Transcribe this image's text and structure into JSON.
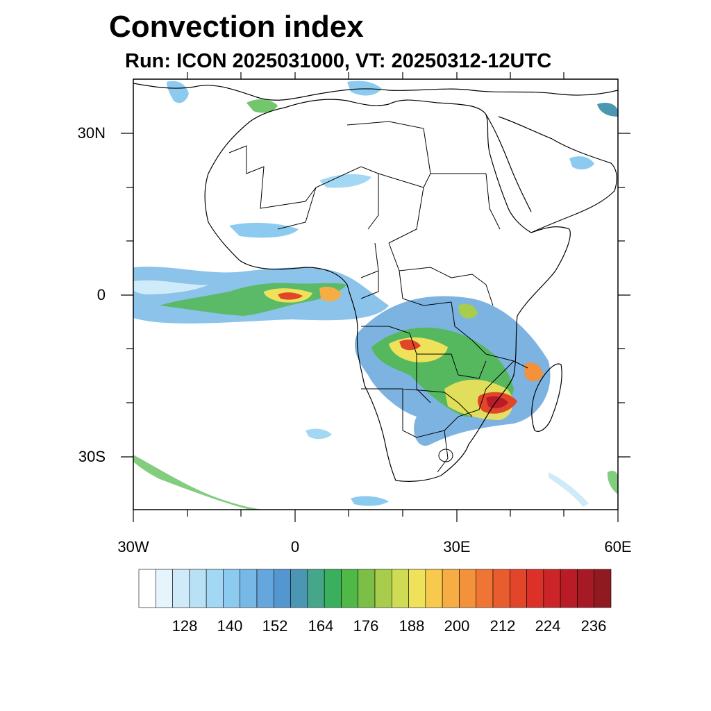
{
  "title": "Convection index",
  "subtitle": "Run: ICON 2025031000,  VT: 20250312-12UTC",
  "axes": {
    "lat_labels": [
      "30N",
      "0",
      "30S"
    ],
    "lon_labels": [
      "30W",
      "0",
      "30E",
      "60E"
    ],
    "lon_range": [
      -30,
      60
    ],
    "lat_range": [
      -40,
      40
    ]
  },
  "colorbar": {
    "labels": [
      "128",
      "140",
      "152",
      "164",
      "176",
      "188",
      "200",
      "212",
      "224",
      "236"
    ],
    "colors": [
      "#ffffff",
      "#e6f4fc",
      "#cfeaf8",
      "#b9e1f6",
      "#a2d8f4",
      "#8ccbef",
      "#78b8e6",
      "#65a6dc",
      "#5496cf",
      "#4a96b3",
      "#46a68a",
      "#3ab05e",
      "#4fb847",
      "#7bbf48",
      "#a8cc4b",
      "#cfdb52",
      "#efe25a",
      "#f7c94d",
      "#f6ad43",
      "#f4913b",
      "#ef7535",
      "#e85c2e",
      "#e1452a",
      "#db3128",
      "#cc2529",
      "#b91c27",
      "#a51a24",
      "#8f1a1f"
    ]
  },
  "map_legend_theme": {
    "low": "#8ccbef",
    "mid": "#4fb847",
    "high": "#efe25a",
    "peak": "#e1452a"
  }
}
